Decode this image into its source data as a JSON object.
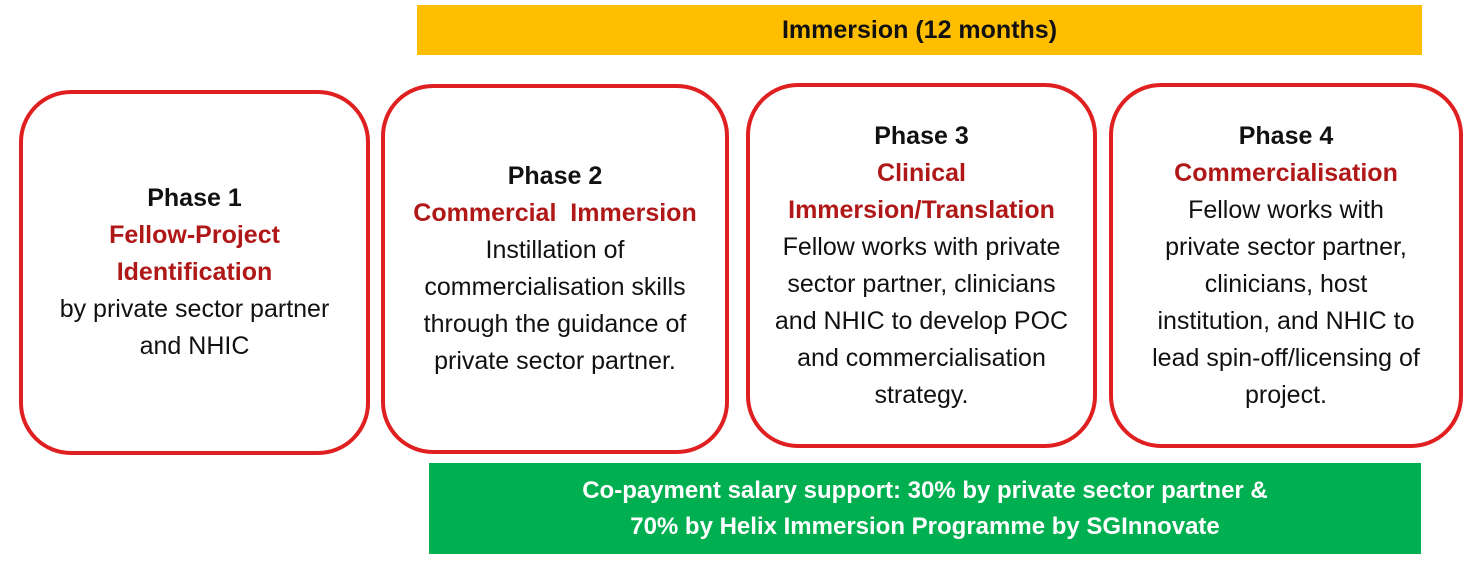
{
  "immersion_bar": {
    "label": "Immersion (12 months)"
  },
  "phases": [
    {
      "phase": "Phase 1",
      "heading_lines": [
        "Fellow-Project",
        "Identification"
      ],
      "body_lines": [
        "by private sector partner",
        "and NHIC"
      ]
    },
    {
      "phase": "Phase 2",
      "heading_lines": [
        "Commercial  Immersion"
      ],
      "body_lines": [
        "Instillation of",
        "commercialisation skills",
        "through the guidance of",
        "private sector partner."
      ]
    },
    {
      "phase": "Phase 3",
      "heading_lines": [
        "Clinical",
        "Immersion/Translation"
      ],
      "body_lines": [
        "Fellow works with private",
        "sector partner, clinicians",
        "and NHIC to develop POC",
        "and commercialisation",
        "strategy."
      ]
    },
    {
      "phase": "Phase 4",
      "heading_lines": [
        "Commercialisation"
      ],
      "body_lines": [
        "Fellow works with",
        "private sector partner,",
        "clinicians, host",
        "institution, and NHIC to",
        "lead spin-off/licensing of",
        "project."
      ]
    }
  ],
  "copayment_bar": {
    "line1": "Co-payment salary support: 30% by private sector partner &",
    "line2": "70% by Helix Immersion Programme by SGInnovate"
  },
  "colors": {
    "immersion_bar": "#FFBF00",
    "copayment_bar": "#00B050",
    "card_border": "#E02020",
    "heading_text": "#B01818"
  }
}
